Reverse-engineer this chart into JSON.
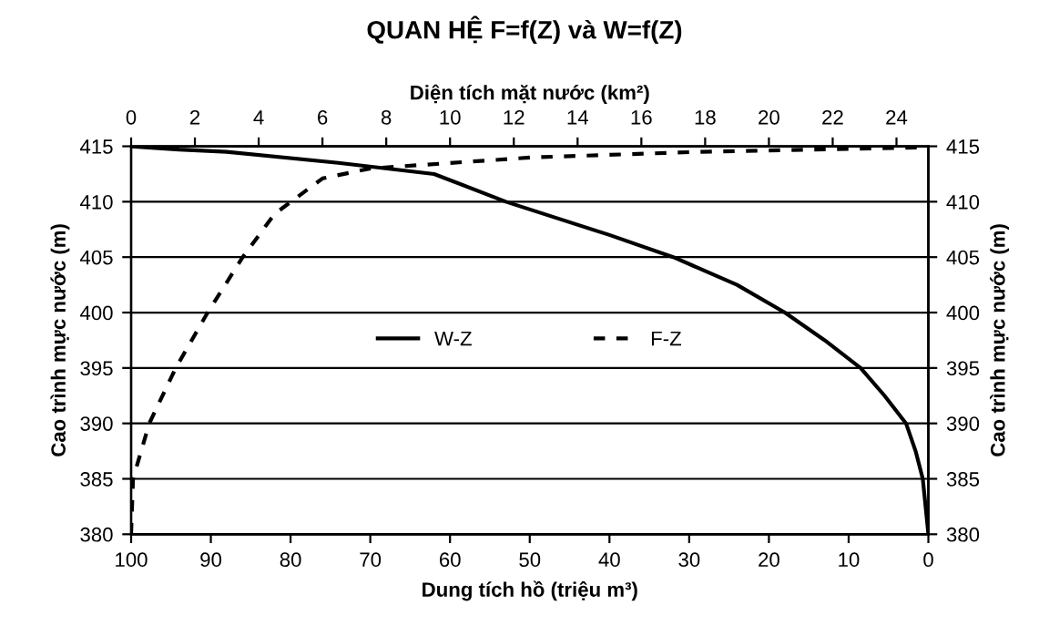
{
  "chart_data": {
    "type": "line",
    "title": "QUAN HỆ F=f(Z) và W=f(Z)",
    "xlabel": "Dung tích hồ (triệu m³)",
    "ylabel": "Cao trình mực nước (m)",
    "y2label": "Cao trình mực nước (m)",
    "x2label": "Diện tích mặt nước (km²)",
    "xlim": [
      100,
      0
    ],
    "xticks": [
      100,
      90,
      80,
      70,
      60,
      50,
      40,
      30,
      20,
      10,
      0
    ],
    "x2lim": [
      0,
      25
    ],
    "x2ticks": [
      0,
      2,
      4,
      6,
      8,
      10,
      12,
      14,
      16,
      18,
      20,
      22,
      24
    ],
    "ylim": [
      380,
      415
    ],
    "yticks": [
      380,
      385,
      390,
      395,
      400,
      405,
      410,
      415
    ],
    "y2lim": [
      380,
      415
    ],
    "y2ticks": [
      380,
      385,
      390,
      395,
      400,
      405,
      410,
      415
    ],
    "grid": "y",
    "legend": "center",
    "series": [
      {
        "name": "W-Z",
        "color": "#000000",
        "line_style": "solid",
        "x": [
          100,
          94,
          88,
          74,
          62,
          53,
          40,
          32,
          24,
          18,
          13,
          8.5,
          5.5,
          2.8,
          1.6,
          0.7,
          0
        ],
        "values": [
          415,
          414.7,
          414.5,
          413.5,
          412.5,
          410,
          407,
          405,
          402.5,
          400,
          397.5,
          395,
          392.5,
          390,
          387.5,
          385,
          380
        ]
      },
      {
        "name": "F-Z",
        "color": "#000000",
        "line_style": "dashed",
        "axis": "x2",
        "x": [
          0,
          0.06,
          0.57,
          1.4,
          2.4,
          3.5,
          4.5,
          6.0,
          7.5,
          12.6,
          17.8,
          24.8
        ],
        "values": [
          380,
          385,
          390,
          395,
          400,
          405,
          408.9,
          412.1,
          413,
          414,
          414.5,
          414.9
        ]
      }
    ]
  }
}
